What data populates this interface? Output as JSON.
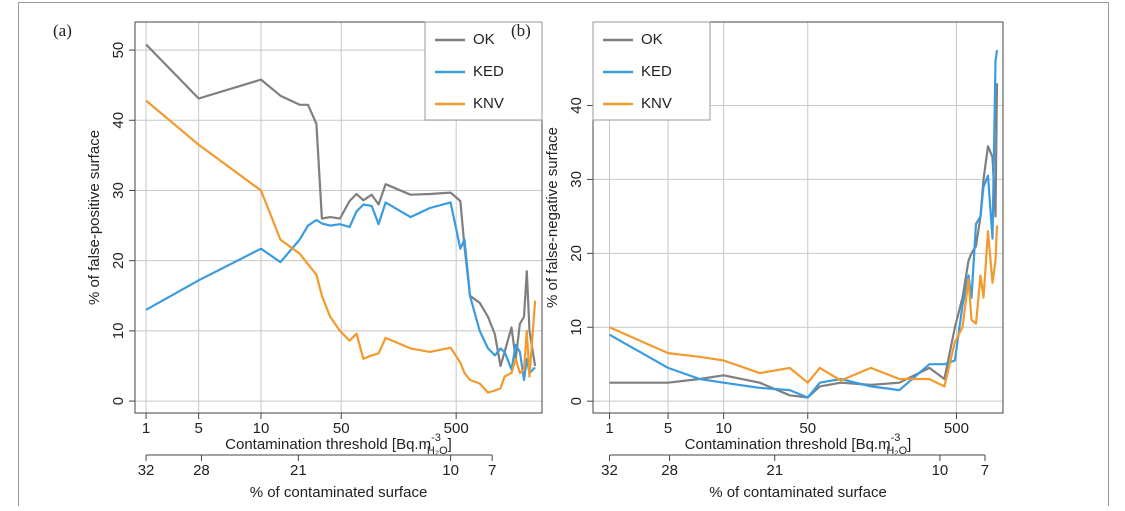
{
  "chart_data": [
    {
      "type": "line",
      "panel_label": "(a)",
      "ylabel": "% of false-positive surface",
      "xlabel": {
        "text": "Contamination threshold [Bq.m",
        "sup": "-3",
        "sub": "H₂O",
        "close": "]"
      },
      "x2label": "% of contaminated surface",
      "x": [
        32,
        28.2,
        23.7,
        22.3,
        20.9,
        20.3,
        19.7,
        19.3,
        18.7,
        18,
        17.3,
        16.8,
        16.3,
        15.7,
        15.2,
        14.7,
        12.9,
        11.5,
        10,
        9.3,
        9,
        8.6,
        7.9,
        7.3,
        6.8,
        6.4,
        6.1,
        5.6,
        5.3,
        5,
        4.7,
        4.5,
        4.3,
        3.9
      ],
      "series": [
        {
          "name": "OK",
          "color": "#7f7f7f",
          "values": [
            50.8,
            43.1,
            45.8,
            43.5,
            42.2,
            42.2,
            39.5,
            26,
            26.2,
            26,
            28.5,
            29.5,
            28.6,
            29.4,
            28,
            30.9,
            29.4,
            29.5,
            29.7,
            28.5,
            22,
            15,
            14,
            12,
            9.5,
            5,
            7,
            10.5,
            6,
            11,
            12,
            18.5,
            10,
            5
          ]
        },
        {
          "name": "KED",
          "color": "#3a9be0",
          "values": [
            13,
            17.2,
            21.7,
            19.8,
            23,
            25,
            25.8,
            25.3,
            25,
            25.2,
            24.8,
            27,
            28,
            27.8,
            25.2,
            28.3,
            26.2,
            27.5,
            28.3,
            21.7,
            23,
            15,
            10,
            7.5,
            6.5,
            7.5,
            7,
            4.5,
            8,
            7,
            3,
            6,
            4,
            4.8
          ]
        },
        {
          "name": "KNV",
          "color": "#f39a2e",
          "values": [
            42.8,
            36.5,
            30,
            23,
            21,
            19.5,
            18,
            15,
            12,
            10,
            8.6,
            9.6,
            6,
            6.5,
            6.8,
            9,
            7.5,
            7,
            7.6,
            5.5,
            4,
            3,
            2.5,
            1.2,
            1.5,
            1.8,
            3.5,
            4,
            6,
            4,
            4.5,
            10,
            3.5,
            14.3
          ]
        }
      ],
      "xlim": [
        32.8,
        3.4
      ],
      "ylim": [
        -1.7,
        54
      ],
      "yticks": [
        0,
        10,
        20,
        30,
        40,
        50
      ],
      "xticks": [
        1,
        5,
        10,
        50,
        500
      ],
      "xtick_surface": [
        32,
        28.2,
        23.7,
        17.9,
        9.6
      ],
      "x2ticks": [
        32,
        28,
        21,
        10,
        7
      ],
      "legend": "upper right",
      "grid": true
    },
    {
      "type": "line",
      "panel_label": "(b)",
      "ylabel": "% of false-negative surface",
      "xlabel": {
        "text": "Contamination threshold [Bq.m",
        "sup": "-3",
        "sub": "H₂O",
        "close": "]"
      },
      "x2label": "% of contaminated surface",
      "x": [
        32,
        28.1,
        26,
        24.4,
        22,
        20,
        18.8,
        18,
        16.6,
        14.6,
        12.7,
        10.7,
        9.7,
        9,
        8.5,
        8.1,
        7.9,
        7.6,
        7.3,
        7.1,
        6.8,
        6.5,
        6.3,
        6.2
      ],
      "series": [
        {
          "name": "OK",
          "color": "#7f7f7f",
          "values": [
            2.5,
            2.5,
            3,
            3.5,
            2.5,
            0.8,
            0.5,
            2,
            2.5,
            2.2,
            2.5,
            4.5,
            3,
            10,
            14,
            19,
            20,
            21,
            25,
            30,
            34.5,
            33,
            25,
            43
          ]
        },
        {
          "name": "KED",
          "color": "#3a9be0",
          "values": [
            9,
            4.5,
            3,
            2.5,
            1.8,
            1.5,
            0.5,
            2.5,
            3,
            2,
            1.5,
            5,
            5,
            5.5,
            13,
            17,
            14,
            24,
            25,
            29,
            30.5,
            22,
            46,
            47.5
          ]
        },
        {
          "name": "KNV",
          "color": "#f39a2e",
          "values": [
            10,
            6.5,
            6,
            5.5,
            3.8,
            4.5,
            2.5,
            4.5,
            2.8,
            4.5,
            3,
            3,
            2,
            8,
            10,
            16.5,
            11,
            10.5,
            17,
            14,
            23,
            16,
            19,
            23.8
          ]
        }
      ],
      "xlim": [
        33.1,
        5.8
      ],
      "ylim": [
        -1.6,
        51.3
      ],
      "yticks": [
        0,
        10,
        20,
        30,
        40
      ],
      "xticks": [
        1,
        5,
        10,
        50,
        500
      ],
      "xtick_surface": [
        32,
        28.1,
        24.4,
        18.8,
        8.9
      ],
      "x2ticks": [
        32,
        28,
        21,
        10,
        7
      ],
      "legend": "upper left",
      "grid": true
    }
  ]
}
